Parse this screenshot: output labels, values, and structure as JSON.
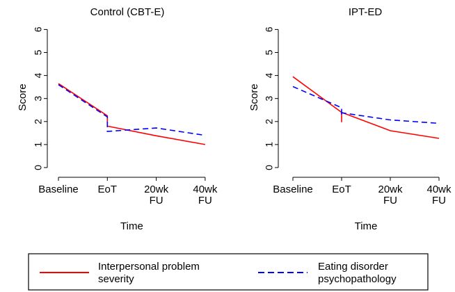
{
  "colors": {
    "background": "#ffffff",
    "axis": "#000000",
    "interpersonal": "#ff0000",
    "eating_disorder": "#0000ff"
  },
  "legend": {
    "position": "bottom",
    "items": [
      {
        "label_lines": [
          "Interpersonal problem",
          "severity"
        ],
        "color": "#ff0000",
        "style": "solid"
      },
      {
        "label_lines": [
          "Eating disorder",
          "psychopathology"
        ],
        "color": "#0000ff",
        "style": "dashed"
      }
    ]
  },
  "chart_data": [
    {
      "type": "line",
      "title": "Control (CBT-E)",
      "xlabel": "Time",
      "ylabel": "Score",
      "ylim": [
        0,
        6
      ],
      "yticks": [
        0,
        1,
        2,
        3,
        4,
        5,
        6
      ],
      "categories": [
        [
          "Baseline"
        ],
        [
          "EoT"
        ],
        [
          "20wk",
          "FU"
        ],
        [
          "40wk",
          "FU"
        ]
      ],
      "grid": false,
      "series": [
        {
          "name": "Interpersonal problem severity",
          "color": "#ff0000",
          "dash": false,
          "x": [
            0,
            1,
            1,
            2,
            3
          ],
          "y": [
            3.65,
            2.25,
            1.8,
            1.38,
            1.0
          ]
        },
        {
          "name": "Eating disorder psychopathology",
          "color": "#0000ff",
          "dash": true,
          "x": [
            0,
            1,
            1,
            2,
            3
          ],
          "y": [
            3.6,
            2.2,
            1.57,
            1.72,
            1.4
          ]
        }
      ]
    },
    {
      "type": "line",
      "title": "IPT-ED",
      "xlabel": "Time",
      "ylabel": "Score",
      "ylim": [
        0,
        6
      ],
      "yticks": [
        0,
        1,
        2,
        3,
        4,
        5,
        6
      ],
      "categories": [
        [
          "Baseline"
        ],
        [
          "EoT"
        ],
        [
          "20wk",
          "FU"
        ],
        [
          "40wk",
          "FU"
        ]
      ],
      "grid": false,
      "series": [
        {
          "name": "Interpersonal problem severity",
          "color": "#ff0000",
          "dash": false,
          "x": [
            0,
            1,
            1,
            1,
            2,
            3
          ],
          "y": [
            3.95,
            2.4,
            1.97,
            2.4,
            1.6,
            1.27
          ]
        },
        {
          "name": "Eating disorder psychopathology",
          "color": "#0000ff",
          "dash": true,
          "x": [
            0,
            1,
            1,
            1,
            2,
            3
          ],
          "y": [
            3.52,
            2.6,
            2.25,
            2.38,
            2.07,
            1.92
          ]
        }
      ]
    }
  ]
}
